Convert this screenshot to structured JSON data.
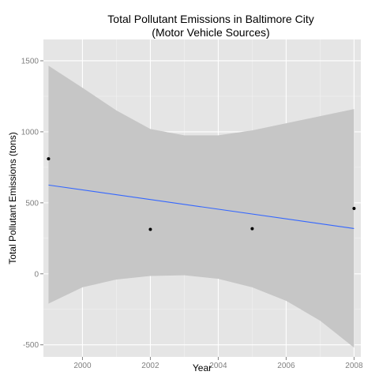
{
  "chart_data": {
    "type": "scatter",
    "title_lines": [
      "Total Pollutant Emissions in Baltimore City",
      "(Motor Vehicle Sources)"
    ],
    "xlabel": "Year",
    "ylabel": "Total Pollutant Emissions (tons)",
    "xlim": [
      1998.85,
      2008.2
    ],
    "ylim": [
      -585,
      1650
    ],
    "x_ticks": [
      2000,
      2002,
      2004,
      2006,
      2008
    ],
    "y_ticks": [
      -500,
      0,
      500,
      1000,
      1500
    ],
    "grid": true,
    "legend": "none",
    "points": [
      {
        "x": 1999,
        "y": 810
      },
      {
        "x": 2002,
        "y": 313
      },
      {
        "x": 2005,
        "y": 318
      },
      {
        "x": 2008,
        "y": 460
      }
    ],
    "smooth": {
      "method": "linear",
      "x": [
        1999,
        2000,
        2001,
        2002,
        2003,
        2004,
        2005,
        2006,
        2007,
        2008
      ],
      "fit": [
        625,
        591,
        557,
        523,
        489,
        455,
        421,
        387,
        353,
        319
      ],
      "lower": [
        -210,
        -95,
        -40,
        -15,
        -10,
        -35,
        -95,
        -190,
        -330,
        -520
      ],
      "upper": [
        1465,
        1310,
        1150,
        1020,
        975,
        975,
        1010,
        1060,
        1110,
        1160
      ]
    },
    "colors": {
      "panel": "#e5e5e5",
      "grid_major": "#ffffff",
      "grid_minor": "#f2f2f2",
      "ribbon": "#c6c6c6",
      "line": "#3366ff",
      "point": "#000000"
    }
  }
}
